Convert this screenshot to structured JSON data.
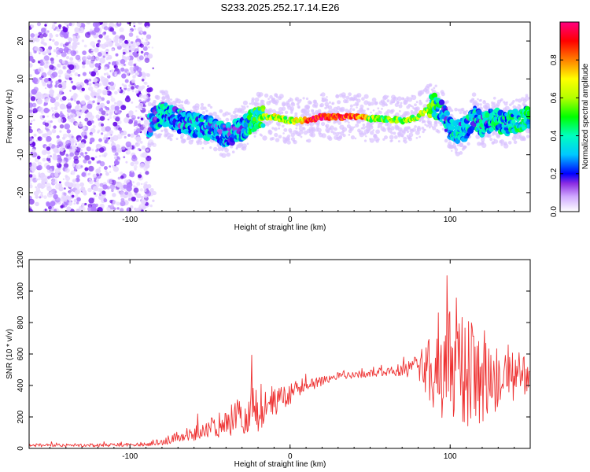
{
  "page": {
    "title": "S233.2025.252.17.14.E26"
  },
  "chart_data": [
    {
      "type": "heatmap",
      "xlabel": "Height of straight line (km)",
      "ylabel": "Frequency (Hz)",
      "xlim": [
        -163,
        150
      ],
      "ylim": [
        -25,
        25
      ],
      "xticks": [
        -100,
        0,
        100
      ],
      "yticks": [
        -20,
        -10,
        0,
        10,
        20
      ],
      "colorbar": {
        "label": "Normalized spectral amplitude",
        "range": [
          0,
          1
        ],
        "ticks": [
          0.0,
          0.2,
          0.4,
          0.6,
          0.8
        ],
        "colors": [
          "#ffffff",
          "#b388ff",
          "#5500ff",
          "#0000ff",
          "#00ffff",
          "#00ff00",
          "#ffff00",
          "#ff8000",
          "#ff0000",
          "#ff0080"
        ]
      },
      "noise_region_km": [
        -163,
        -88
      ],
      "ridge": {
        "x": [
          -88,
          -80,
          -70,
          -60,
          -50,
          -40,
          -30,
          -20,
          -10,
          0,
          10,
          20,
          30,
          40,
          50,
          60,
          70,
          80,
          85,
          90,
          95,
          100,
          105,
          110,
          115,
          120,
          125,
          130,
          135,
          140,
          145,
          150
        ],
        "freq": [
          -2,
          1,
          -1,
          -2,
          -3,
          -5,
          -3,
          0,
          0,
          -1,
          -1,
          0,
          0,
          0,
          -0.5,
          -0.5,
          -1,
          0,
          2,
          3,
          1,
          -3,
          -4,
          -3,
          0,
          -2,
          -1,
          -1,
          -2,
          -1,
          -0.5,
          0
        ],
        "amplitude": [
          0.25,
          0.3,
          0.28,
          0.3,
          0.3,
          0.25,
          0.3,
          0.45,
          0.6,
          0.55,
          0.8,
          0.95,
          0.9,
          0.85,
          0.6,
          0.55,
          0.55,
          0.6,
          0.55,
          0.45,
          0.3,
          0.3,
          0.3,
          0.3,
          0.3,
          0.3,
          0.3,
          0.35,
          0.3,
          0.35,
          0.4,
          0.35
        ]
      }
    },
    {
      "type": "line",
      "xlabel": "Height of straight line (km)",
      "ylabel": "SNR (10 * v/v)",
      "xlim": [
        -163,
        150
      ],
      "ylim": [
        0,
        1200
      ],
      "xticks": [
        -100,
        0,
        100
      ],
      "yticks": [
        0,
        200,
        400,
        600,
        800,
        1000,
        1200
      ],
      "series": [
        {
          "name": "SNR",
          "color": "#ee3333",
          "envelope_x": [
            -163,
            -120,
            -100,
            -85,
            -70,
            -55,
            -40,
            -30,
            -20,
            -10,
            0,
            10,
            20,
            30,
            40,
            50,
            60,
            70,
            80,
            90,
            100,
            110,
            120,
            130,
            140,
            150
          ],
          "envelope_mean": [
            20,
            20,
            25,
            30,
            70,
            110,
            170,
            220,
            260,
            300,
            340,
            390,
            430,
            460,
            470,
            480,
            490,
            500,
            520,
            500,
            480,
            470,
            470,
            460,
            470,
            460
          ],
          "envelope_spread": [
            10,
            10,
            12,
            15,
            40,
            60,
            90,
            130,
            160,
            100,
            60,
            40,
            30,
            25,
            25,
            25,
            30,
            40,
            80,
            250,
            400,
            350,
            300,
            220,
            180,
            120
          ]
        }
      ]
    }
  ]
}
